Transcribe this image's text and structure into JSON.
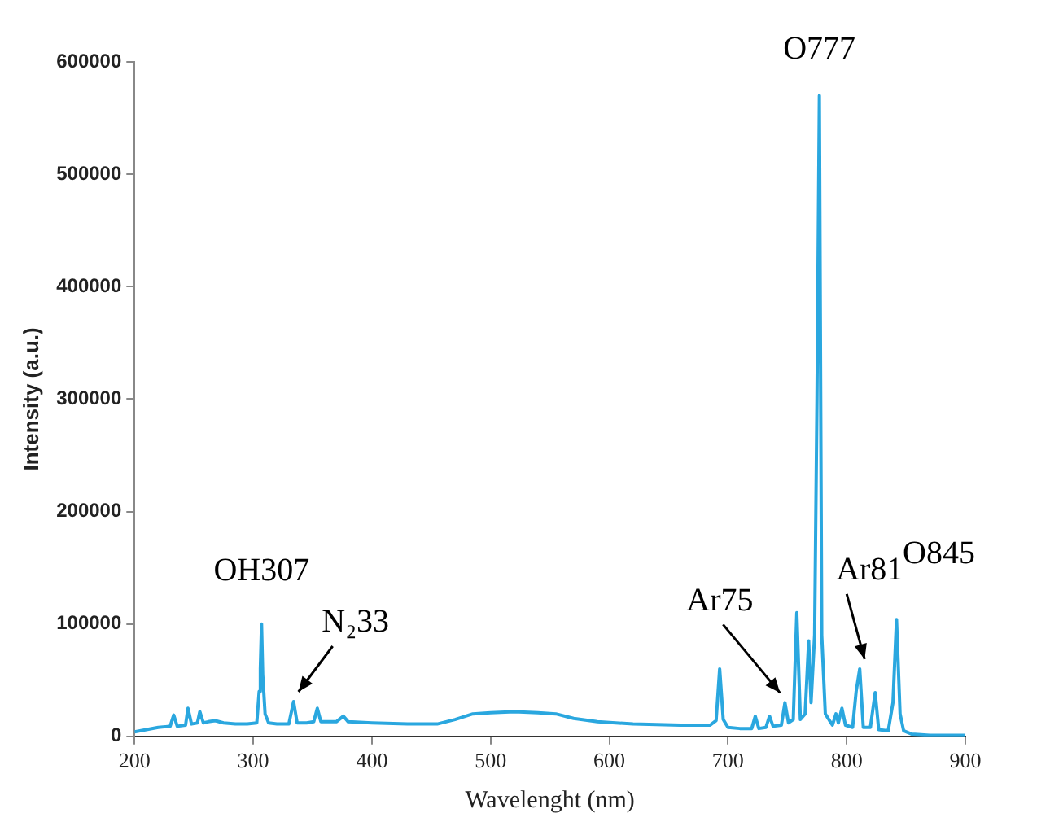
{
  "chart_data": {
    "type": "line",
    "xlabel": "Wavelenght (nm)",
    "ylabel": "Intensity (a.u.)",
    "xlim": [
      200,
      900
    ],
    "xticks": [
      200,
      300,
      400,
      500,
      600,
      700,
      800,
      900
    ],
    "ylim": [
      0,
      600000
    ],
    "yticks": [
      0,
      100000,
      200000,
      300000,
      400000,
      500000,
      600000
    ],
    "grid": false,
    "legend": false,
    "marker": "none",
    "line_style": "solid",
    "series": [
      {
        "color": "#2aa7df",
        "x": [
          200,
          210,
          220,
          230,
          233,
          236,
          243,
          245,
          248,
          253,
          255,
          258,
          262,
          268,
          275,
          285,
          295,
          303,
          305,
          306,
          307,
          308,
          310,
          313,
          320,
          330,
          334,
          337,
          345,
          351,
          354,
          357,
          370,
          376,
          380,
          400,
          430,
          455,
          470,
          485,
          500,
          520,
          540,
          555,
          570,
          590,
          620,
          660,
          685,
          690,
          693,
          696,
          700,
          710,
          720,
          723,
          726,
          732,
          735,
          738,
          745,
          748,
          751,
          755,
          758,
          761,
          765,
          768,
          770,
          773,
          775,
          777,
          779,
          782,
          788,
          791,
          793,
          796,
          799,
          805,
          808,
          811,
          814,
          820,
          824,
          827,
          835,
          839,
          842,
          845,
          848,
          855,
          870,
          900
        ],
        "values": [
          4000,
          6000,
          8000,
          9000,
          19000,
          9000,
          10000,
          25000,
          11000,
          12000,
          22000,
          12000,
          13000,
          14000,
          12000,
          11000,
          11000,
          12000,
          40000,
          60000,
          100000,
          55000,
          20000,
          12000,
          11000,
          11000,
          31000,
          12000,
          12000,
          13000,
          25000,
          13000,
          13000,
          18000,
          13000,
          12000,
          11000,
          11000,
          15000,
          20000,
          21000,
          22000,
          21000,
          20000,
          16000,
          13000,
          11000,
          10000,
          10000,
          14000,
          60000,
          15000,
          8000,
          7000,
          7000,
          18000,
          7000,
          8000,
          18000,
          9000,
          10000,
          30000,
          12000,
          15000,
          110000,
          15000,
          20000,
          85000,
          30000,
          90000,
          300000,
          570000,
          90000,
          20000,
          10000,
          20000,
          12000,
          25000,
          10000,
          8000,
          40000,
          60000,
          8000,
          8000,
          39000,
          6000,
          5000,
          30000,
          104000,
          20000,
          5000,
          2000,
          1000,
          1000
        ]
      }
    ],
    "annotations": [
      {
        "text": "OH307",
        "x": 307,
        "y": 100000
      },
      {
        "text": "N₂33",
        "x": 334,
        "y": 31000
      },
      {
        "text": "Ar75",
        "x": 748,
        "y": 30000
      },
      {
        "text": "O777",
        "x": 777,
        "y": 570000
      },
      {
        "text": "Ar81",
        "x": 811,
        "y": 60000
      },
      {
        "text": "O845",
        "x": 842,
        "y": 104000
      }
    ]
  }
}
